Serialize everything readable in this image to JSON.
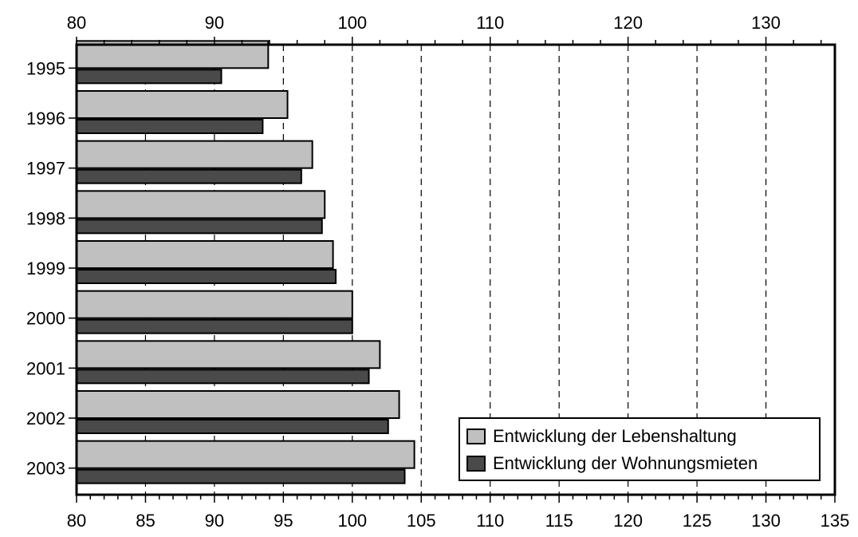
{
  "chart_data": {
    "type": "bar",
    "orientation": "horizontal",
    "title": "",
    "xlabel": "",
    "ylabel": "",
    "categories": [
      "1995",
      "1996",
      "1997",
      "1998",
      "1999",
      "2000",
      "2001",
      "2002",
      "2003"
    ],
    "series": [
      {
        "name": "Entwicklung der Lebenshaltung",
        "color": "#c0c0c0",
        "values": [
          93.9,
          95.3,
          97.1,
          98.0,
          98.6,
          100.0,
          102.0,
          103.4,
          104.5
        ]
      },
      {
        "name": "Entwicklung der Wohnungsmieten",
        "color": "#4a4a4a",
        "values": [
          90.5,
          93.5,
          96.3,
          97.8,
          98.8,
          100.0,
          101.2,
          102.6,
          103.8
        ]
      }
    ],
    "xlim": [
      80,
      135
    ],
    "bottom_ticks": [
      "80",
      "85",
      "90",
      "95",
      "100",
      "105",
      "110",
      "115",
      "120",
      "125",
      "130",
      "135"
    ],
    "top_ticks": [
      "80",
      "90",
      "100",
      "110",
      "120",
      "130"
    ],
    "grid": "vertical dashed",
    "legend_position": "bottom-right"
  }
}
